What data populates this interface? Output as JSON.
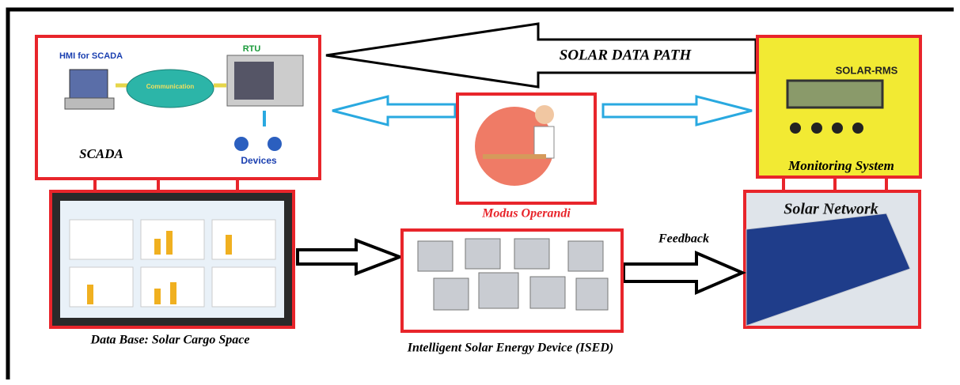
{
  "arrows": {
    "top": "SOLAR DATA PATH",
    "feedback": "Feedback"
  },
  "nodes": [
    {
      "label": "SCADA",
      "parts": [
        "HMI for SCADA",
        "Communication",
        "RTU",
        "Devices"
      ]
    },
    {
      "label": "Modus Operandi"
    },
    {
      "label": "Monitoring System",
      "device": "SOLAR-RMS"
    },
    {
      "label": "Solar Network"
    },
    {
      "label": "Data Base: Solar Cargo Space"
    },
    {
      "label": "Intelligent Solar Energy Device (ISED)"
    }
  ]
}
